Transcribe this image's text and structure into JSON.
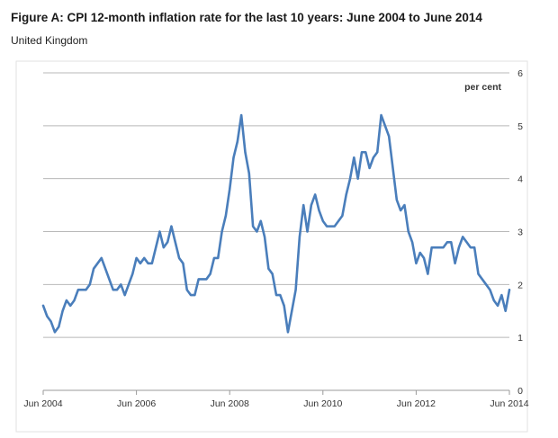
{
  "header": {
    "title": "Figure A: CPI 12-month inflation rate for the last 10 years: June 2004 to June 2014",
    "subtitle": "United Kingdom"
  },
  "chart_data": {
    "type": "line",
    "title": "Figure A: CPI 12-month inflation rate for the last 10 years: June 2004 to June 2014",
    "subtitle": "United Kingdom",
    "unit_label": "per cent",
    "xlabel": "",
    "ylabel": "per cent",
    "ylim": [
      0,
      6
    ],
    "yticks": [
      0,
      1,
      2,
      3,
      4,
      5,
      6
    ],
    "xtick_labels": [
      "Jun 2004",
      "Jun 2006",
      "Jun 2008",
      "Jun 2010",
      "Jun 2012",
      "Jun 2014"
    ],
    "xtick_month_index": [
      0,
      24,
      48,
      72,
      96,
      120
    ],
    "grid": "horizontal",
    "line_color": "#4a7ebb",
    "series": [
      {
        "name": "CPI 12-month inflation rate",
        "start": "Jun 2004",
        "frequency": "monthly",
        "values": [
          1.6,
          1.4,
          1.3,
          1.1,
          1.2,
          1.5,
          1.7,
          1.6,
          1.7,
          1.9,
          1.9,
          1.9,
          2.0,
          2.3,
          2.4,
          2.5,
          2.3,
          2.1,
          1.9,
          1.9,
          2.0,
          1.8,
          2.0,
          2.2,
          2.5,
          2.4,
          2.5,
          2.4,
          2.4,
          2.7,
          3.0,
          2.7,
          2.8,
          3.1,
          2.8,
          2.5,
          2.4,
          1.9,
          1.8,
          1.8,
          2.1,
          2.1,
          2.1,
          2.2,
          2.5,
          2.5,
          3.0,
          3.3,
          3.8,
          4.4,
          4.7,
          5.2,
          4.5,
          4.1,
          3.1,
          3.0,
          3.2,
          2.9,
          2.3,
          2.2,
          1.8,
          1.8,
          1.6,
          1.1,
          1.5,
          1.9,
          2.9,
          3.5,
          3.0,
          3.5,
          3.7,
          3.4,
          3.2,
          3.1,
          3.1,
          3.1,
          3.2,
          3.3,
          3.7,
          4.0,
          4.4,
          4.0,
          4.5,
          4.5,
          4.2,
          4.4,
          4.5,
          5.2,
          5.0,
          4.8,
          4.2,
          3.6,
          3.4,
          3.5,
          3.0,
          2.8,
          2.4,
          2.6,
          2.5,
          2.2,
          2.7,
          2.7,
          2.7,
          2.7,
          2.8,
          2.8,
          2.4,
          2.7,
          2.9,
          2.8,
          2.7,
          2.7,
          2.2,
          2.1,
          2.0,
          1.9,
          1.7,
          1.6,
          1.8,
          1.5,
          1.9
        ]
      }
    ]
  }
}
